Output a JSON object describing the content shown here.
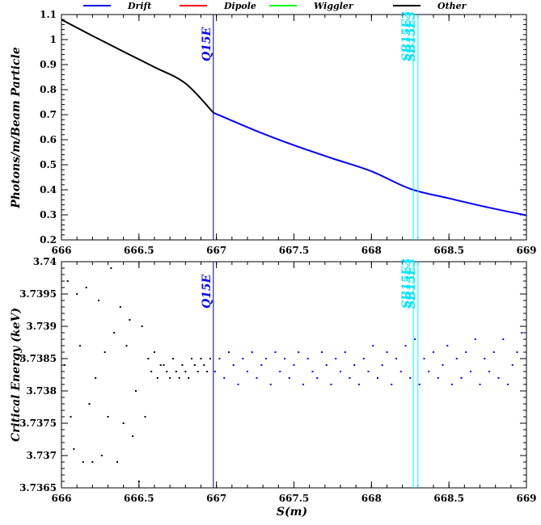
{
  "chart_data": {
    "type": "line",
    "legend": {
      "placement": "top",
      "entries": [
        {
          "name": "Drift",
          "color": "#0000ff"
        },
        {
          "name": "Dipole",
          "color": "#ff0000"
        },
        {
          "name": "Wiggler",
          "color": "#00ff00"
        },
        {
          "name": "Other",
          "color": "#000000"
        }
      ]
    },
    "xlabel": "S(m)",
    "xlim": [
      666,
      669
    ],
    "x_ticks": [
      "666",
      "666.5",
      "667",
      "667.5",
      "668",
      "668.5",
      "669"
    ],
    "markers": [
      {
        "label": "Q15E",
        "x": 666.98,
        "color": "#000080",
        "label_color": "#0000ff"
      },
      {
        "label": "SB15E3",
        "x": 668.27,
        "color": "#00ffff",
        "label_color": "#00e5ff"
      },
      {
        "label": "SB15E3",
        "x": 668.3,
        "color": "#00ffff",
        "label_color": "#00e5ff"
      }
    ],
    "panels": [
      {
        "ylabel": "Photons/m/Beam Particle",
        "ylim": [
          0.2,
          1.1
        ],
        "y_ticks": [
          "0.2",
          "0.3",
          "0.4",
          "0.5",
          "0.6",
          "0.7",
          "0.8",
          "0.9",
          "1",
          "1.1"
        ],
        "series": [
          {
            "legend_ref": "Other",
            "x": [
              666.0,
              666.2,
              666.4,
              666.6,
              666.8,
              666.98
            ],
            "y": [
              1.08,
              1.015,
              0.952,
              0.89,
              0.825,
              0.708
            ]
          },
          {
            "legend_ref": "Drift",
            "x": [
              666.98,
              667.25,
              667.5,
              667.75,
              668.0,
              668.25,
              668.5,
              668.75,
              669.0
            ],
            "y": [
              0.708,
              0.637,
              0.578,
              0.525,
              0.474,
              0.404,
              0.366,
              0.33,
              0.298
            ]
          }
        ]
      },
      {
        "ylabel": "Critical Energy (keV)",
        "ylim": [
          3.7365,
          3.74
        ],
        "y_ticks": [
          "3.7365",
          "3.737",
          "3.7375",
          "3.738",
          "3.7385",
          "3.739",
          "3.7395",
          "3.74"
        ],
        "series": [
          {
            "legend_ref": "Other",
            "style": "dots",
            "x": [
              666.02,
              666.04,
              666.06,
              666.08,
              666.1,
              666.12,
              666.14,
              666.16,
              666.18,
              666.2,
              666.22,
              666.24,
              666.26,
              666.28,
              666.3,
              666.32,
              666.34,
              666.36,
              666.38,
              666.4,
              666.42,
              666.44,
              666.46,
              666.48,
              666.5,
              666.52,
              666.54,
              666.56,
              666.58,
              666.6,
              666.62,
              666.64,
              666.66,
              666.68,
              666.7,
              666.72,
              666.74,
              666.76,
              666.78,
              666.8,
              666.82,
              666.84,
              666.86,
              666.88,
              666.9,
              666.92,
              666.94,
              666.96
            ],
            "y": [
              3.7384,
              3.7397,
              3.7376,
              3.7371,
              3.7395,
              3.7387,
              3.7369,
              3.7396,
              3.7378,
              3.7369,
              3.7382,
              3.7394,
              3.737,
              3.7386,
              3.7376,
              3.7399,
              3.7389,
              3.7369,
              3.7393,
              3.7375,
              3.7387,
              3.7391,
              3.7373,
              3.738,
              3.7366,
              3.739,
              3.7376,
              3.7385,
              3.7383,
              3.7386,
              3.7382,
              3.7384,
              3.7384,
              3.7383,
              3.7382,
              3.7385,
              3.7383,
              3.7382,
              3.7384,
              3.7383,
              3.7382,
              3.7385,
              3.7384,
              3.7383,
              3.7385,
              3.7384,
              3.7383,
              3.7385
            ]
          },
          {
            "legend_ref": "Drift",
            "style": "dots",
            "x": [
              666.99,
              667.02,
              667.05,
              667.08,
              667.11,
              667.14,
              667.17,
              667.2,
              667.23,
              667.26,
              667.29,
              667.32,
              667.35,
              667.38,
              667.41,
              667.44,
              667.47,
              667.5,
              667.53,
              667.56,
              667.59,
              667.62,
              667.65,
              667.68,
              667.71,
              667.74,
              667.77,
              667.8,
              667.83,
              667.86,
              667.89,
              667.92,
              667.95,
              667.98,
              668.01,
              668.04,
              668.07,
              668.1,
              668.13,
              668.16,
              668.19,
              668.22,
              668.25,
              668.28,
              668.31,
              668.34,
              668.37,
              668.4,
              668.43,
              668.46,
              668.49,
              668.52,
              668.55,
              668.58,
              668.61,
              668.64,
              668.67,
              668.7,
              668.73,
              668.76,
              668.79,
              668.82,
              668.85,
              668.88,
              668.91,
              668.94,
              668.97
            ],
            "y": [
              3.7383,
              3.7385,
              3.7382,
              3.7386,
              3.7384,
              3.7381,
              3.7385,
              3.7383,
              3.7386,
              3.7382,
              3.7384,
              3.7385,
              3.7381,
              3.7386,
              3.7383,
              3.7385,
              3.7382,
              3.7384,
              3.7386,
              3.7381,
              3.7385,
              3.7383,
              3.7382,
              3.7386,
              3.7384,
              3.7381,
              3.7385,
              3.7383,
              3.7386,
              3.7382,
              3.7384,
              3.7381,
              3.7385,
              3.7383,
              3.7387,
              3.7382,
              3.7384,
              3.7386,
              3.7381,
              3.7385,
              3.7383,
              3.7387,
              3.7382,
              3.7388,
              3.7381,
              3.7385,
              3.7383,
              3.7386,
              3.7382,
              3.7384,
              3.7387,
              3.7381,
              3.7385,
              3.7382,
              3.7386,
              3.7383,
              3.7388,
              3.7381,
              3.7385,
              3.7383,
              3.7386,
              3.7382,
              3.7388,
              3.7381,
              3.7384,
              3.7386,
              3.7389
            ]
          }
        ]
      }
    ]
  }
}
